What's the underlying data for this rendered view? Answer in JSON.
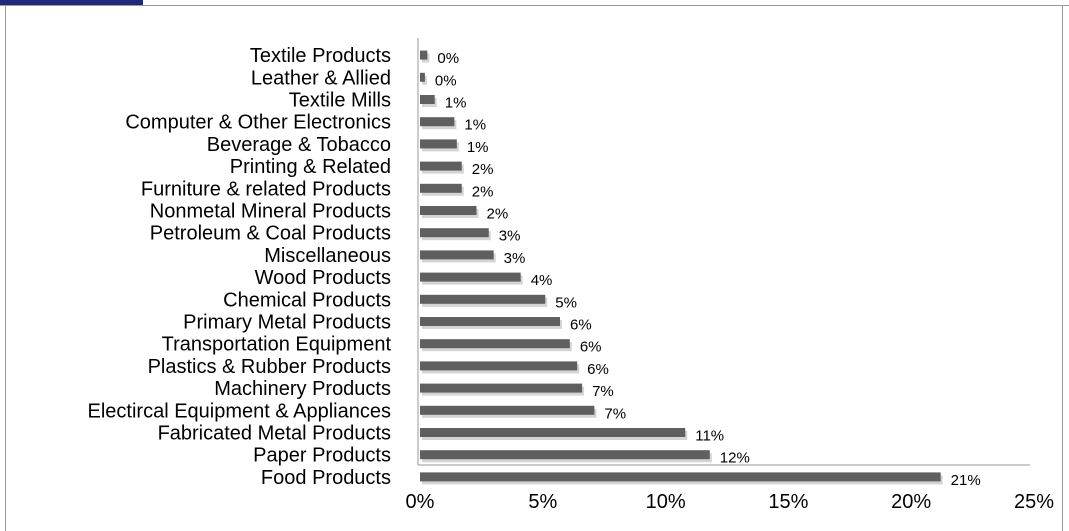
{
  "chart_data": {
    "type": "bar",
    "orientation": "horizontal",
    "categories": [
      "Textile Products",
      "Leather & Allied",
      "Textile Mills",
      "Computer & Other Electronics",
      "Beverage & Tobacco",
      "Printing & Related",
      "Furniture & related Products",
      "Nonmetal Mineral Products",
      "Petroleum & Coal Products",
      "Miscellaneous",
      "Wood Products",
      "Chemical Products",
      "Primary Metal Products",
      "Transportation Equipment",
      "Plastics & Rubber Products",
      "Machinery Products",
      "Electircal Equipment & Appliances",
      "Fabricated Metal Products",
      "Paper Products",
      "Food Products"
    ],
    "values": [
      0.3,
      0.2,
      0.6,
      1.4,
      1.5,
      1.7,
      1.7,
      2.3,
      2.8,
      3.0,
      4.1,
      5.1,
      5.7,
      6.1,
      6.4,
      6.6,
      7.1,
      10.8,
      11.8,
      21.2
    ],
    "value_labels": [
      "0%",
      "0%",
      "1%",
      "1%",
      "1%",
      "2%",
      "2%",
      "2%",
      "3%",
      "3%",
      "4%",
      "5%",
      "6%",
      "6%",
      "6%",
      "7%",
      "7%",
      "11%",
      "12%",
      "21%"
    ],
    "xlim": [
      0,
      25
    ],
    "x_ticks": [
      "0%",
      "5%",
      "10%",
      "15%",
      "20%",
      "25%"
    ],
    "title": "",
    "xlabel": "",
    "ylabel": "",
    "grid": false,
    "bar_color": "#5f5f5f",
    "shadow_color": "#d4d4d4"
  }
}
